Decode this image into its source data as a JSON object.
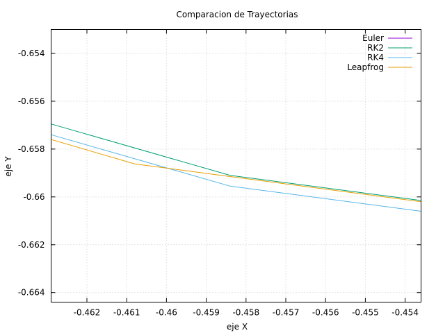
{
  "chart_data": {
    "type": "line",
    "title": "Comparacion de Trayectorias",
    "xlabel": "eje X",
    "ylabel": "eje Y",
    "xlim": [
      -0.4629,
      -0.4536
    ],
    "ylim": [
      -0.6644,
      -0.653
    ],
    "xticks": [
      -0.462,
      -0.461,
      -0.46,
      -0.459,
      -0.458,
      -0.457,
      -0.456,
      -0.455,
      -0.454
    ],
    "xtick_labels": [
      "-0.462",
      "-0.461",
      "-0.46",
      "-0.459",
      "-0.458",
      "-0.457",
      "-0.456",
      "-0.455",
      "-0.454"
    ],
    "yticks": [
      -0.654,
      -0.656,
      -0.658,
      -0.66,
      -0.662,
      -0.664
    ],
    "ytick_labels": [
      "-0.654",
      "-0.656",
      "-0.658",
      "-0.66",
      "-0.662",
      "-0.664"
    ],
    "grid": true,
    "legend_position": "top-right",
    "series": [
      {
        "name": "Euler",
        "color": "#9400d3",
        "x": [],
        "y": []
      },
      {
        "name": "RK2",
        "color": "#009e73",
        "x": [
          -0.4629,
          -0.4584,
          -0.4536
        ],
        "y": [
          -0.65695,
          -0.6591,
          -0.66015
        ]
      },
      {
        "name": "RK4",
        "color": "#56b4e9",
        "x": [
          -0.4629,
          -0.4584,
          -0.4536
        ],
        "y": [
          -0.6574,
          -0.65955,
          -0.6606
        ]
      },
      {
        "name": "Leapfrog",
        "color": "#e69f00",
        "x": [
          -0.4629,
          -0.4608,
          -0.4584,
          -0.4536
        ],
        "y": [
          -0.6576,
          -0.65862,
          -0.65915,
          -0.6602
        ]
      }
    ]
  }
}
